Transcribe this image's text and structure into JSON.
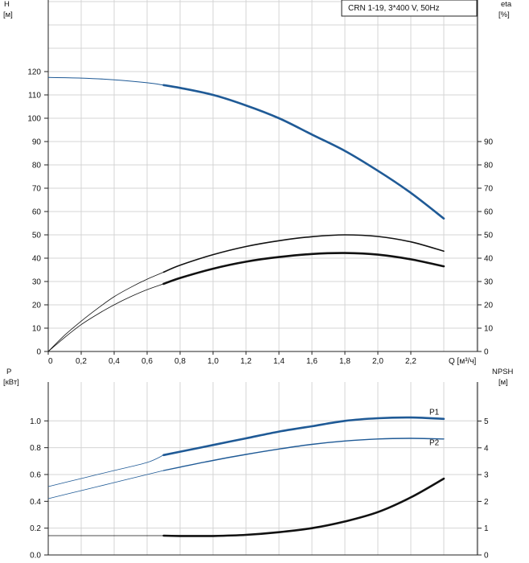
{
  "chart_data": [
    {
      "type": "line",
      "title": "CRN 1-19, 3*400 V, 50Hz",
      "left_axis": {
        "label": "H",
        "unit": "[м]",
        "ylim": [
          0,
          150
        ],
        "ticks": [
          0,
          10,
          20,
          30,
          40,
          50,
          60,
          70,
          80,
          90,
          100,
          110,
          120
        ]
      },
      "right_axis": {
        "label": "eta",
        "unit": "[%]",
        "ylim": [
          0,
          150
        ],
        "ticks": [
          0,
          10,
          20,
          30,
          40,
          50,
          60,
          70,
          80,
          90
        ]
      },
      "x_axis": {
        "label": "Q [м³/ч]",
        "xlim": [
          0,
          2.6
        ],
        "ticks": [
          "0",
          "0,2",
          "0,4",
          "0,6",
          "0,8",
          "1,0",
          "1,2",
          "1,4",
          "1,6",
          "1,8",
          "2,0",
          "2,2"
        ]
      },
      "grid": true,
      "series": [
        {
          "axis": "left",
          "color": "#1f5a96",
          "points": [
            [
              0,
              117.5
            ],
            [
              0.2,
              117.2
            ],
            [
              0.4,
              116.5
            ],
            [
              0.6,
              115.2
            ],
            [
              0.7,
              114.2
            ],
            [
              0.8,
              113
            ],
            [
              1.0,
              110
            ],
            [
              1.2,
              105.5
            ],
            [
              1.4,
              100
            ],
            [
              1.6,
              93
            ],
            [
              1.8,
              86
            ],
            [
              2.0,
              77.5
            ],
            [
              2.2,
              68
            ],
            [
              2.4,
              57
            ]
          ],
          "duty_from": 0.7
        },
        {
          "axis": "right",
          "color": "#111111",
          "points": [
            [
              0,
              0
            ],
            [
              0.1,
              7
            ],
            [
              0.2,
              13
            ],
            [
              0.3,
              18.5
            ],
            [
              0.4,
              23.5
            ],
            [
              0.5,
              27.5
            ],
            [
              0.6,
              31
            ],
            [
              0.7,
              34
            ],
            [
              0.8,
              37
            ],
            [
              1.0,
              41.5
            ],
            [
              1.2,
              45
            ],
            [
              1.4,
              47.5
            ],
            [
              1.6,
              49.2
            ],
            [
              1.8,
              50
            ],
            [
              2.0,
              49.3
            ],
            [
              2.2,
              47
            ],
            [
              2.4,
              43
            ]
          ],
          "duty_from": 0.7
        },
        {
          "axis": "right",
          "color": "#111111",
          "points": [
            [
              0,
              0
            ],
            [
              0.1,
              6
            ],
            [
              0.2,
              11.5
            ],
            [
              0.3,
              16
            ],
            [
              0.4,
              20
            ],
            [
              0.5,
              23.5
            ],
            [
              0.6,
              26.5
            ],
            [
              0.7,
              29
            ],
            [
              0.8,
              31.5
            ],
            [
              1.0,
              35.5
            ],
            [
              1.2,
              38.5
            ],
            [
              1.4,
              40.5
            ],
            [
              1.6,
              41.8
            ],
            [
              1.8,
              42.2
            ],
            [
              2.0,
              41.5
            ],
            [
              2.2,
              39.5
            ],
            [
              2.4,
              36.5
            ]
          ],
          "duty_from": 0.7
        }
      ]
    },
    {
      "type": "line",
      "left_axis": {
        "label": "P",
        "unit": "[кВт]",
        "ylim": [
          0,
          1.2
        ],
        "ticks": [
          "0.0",
          "0.2",
          "0.4",
          "0.6",
          "0.8",
          "1.0"
        ]
      },
      "right_axis": {
        "label": "NPSH",
        "unit": "[м]",
        "ylim": [
          0,
          6
        ],
        "ticks": [
          0,
          1,
          2,
          3,
          4,
          5
        ]
      },
      "xlim": [
        0,
        2.6
      ],
      "grid": true,
      "series": [
        {
          "name": "P1",
          "axis": "left",
          "color": "#1f5a96",
          "points": [
            [
              0,
              0.51
            ],
            [
              0.2,
              0.57
            ],
            [
              0.4,
              0.63
            ],
            [
              0.6,
              0.69
            ],
            [
              0.7,
              0.745
            ],
            [
              0.8,
              0.77
            ],
            [
              1.0,
              0.82
            ],
            [
              1.2,
              0.87
            ],
            [
              1.4,
              0.92
            ],
            [
              1.6,
              0.96
            ],
            [
              1.8,
              1.0
            ],
            [
              2.0,
              1.02
            ],
            [
              2.2,
              1.025
            ],
            [
              2.4,
              1.015
            ]
          ],
          "duty_from": 0.7
        },
        {
          "name": "P2",
          "axis": "left",
          "color": "#1f5a96",
          "points": [
            [
              0,
              0.42
            ],
            [
              0.2,
              0.48
            ],
            [
              0.4,
              0.54
            ],
            [
              0.6,
              0.6
            ],
            [
              0.7,
              0.63
            ],
            [
              0.8,
              0.655
            ],
            [
              1.0,
              0.705
            ],
            [
              1.2,
              0.75
            ],
            [
              1.4,
              0.79
            ],
            [
              1.6,
              0.825
            ],
            [
              1.8,
              0.85
            ],
            [
              2.0,
              0.865
            ],
            [
              2.2,
              0.87
            ],
            [
              2.4,
              0.865
            ]
          ],
          "duty_from": 0.7
        },
        {
          "axis": "right",
          "color": "#111111",
          "points": [
            [
              0,
              0.72
            ],
            [
              0.3,
              0.72
            ],
            [
              0.6,
              0.72
            ],
            [
              0.7,
              0.72
            ],
            [
              0.8,
              0.71
            ],
            [
              1.0,
              0.71
            ],
            [
              1.2,
              0.75
            ],
            [
              1.4,
              0.85
            ],
            [
              1.6,
              1.0
            ],
            [
              1.8,
              1.25
            ],
            [
              2.0,
              1.6
            ],
            [
              2.2,
              2.15
            ],
            [
              2.4,
              2.85
            ]
          ],
          "duty_from": 0.7
        }
      ]
    }
  ]
}
